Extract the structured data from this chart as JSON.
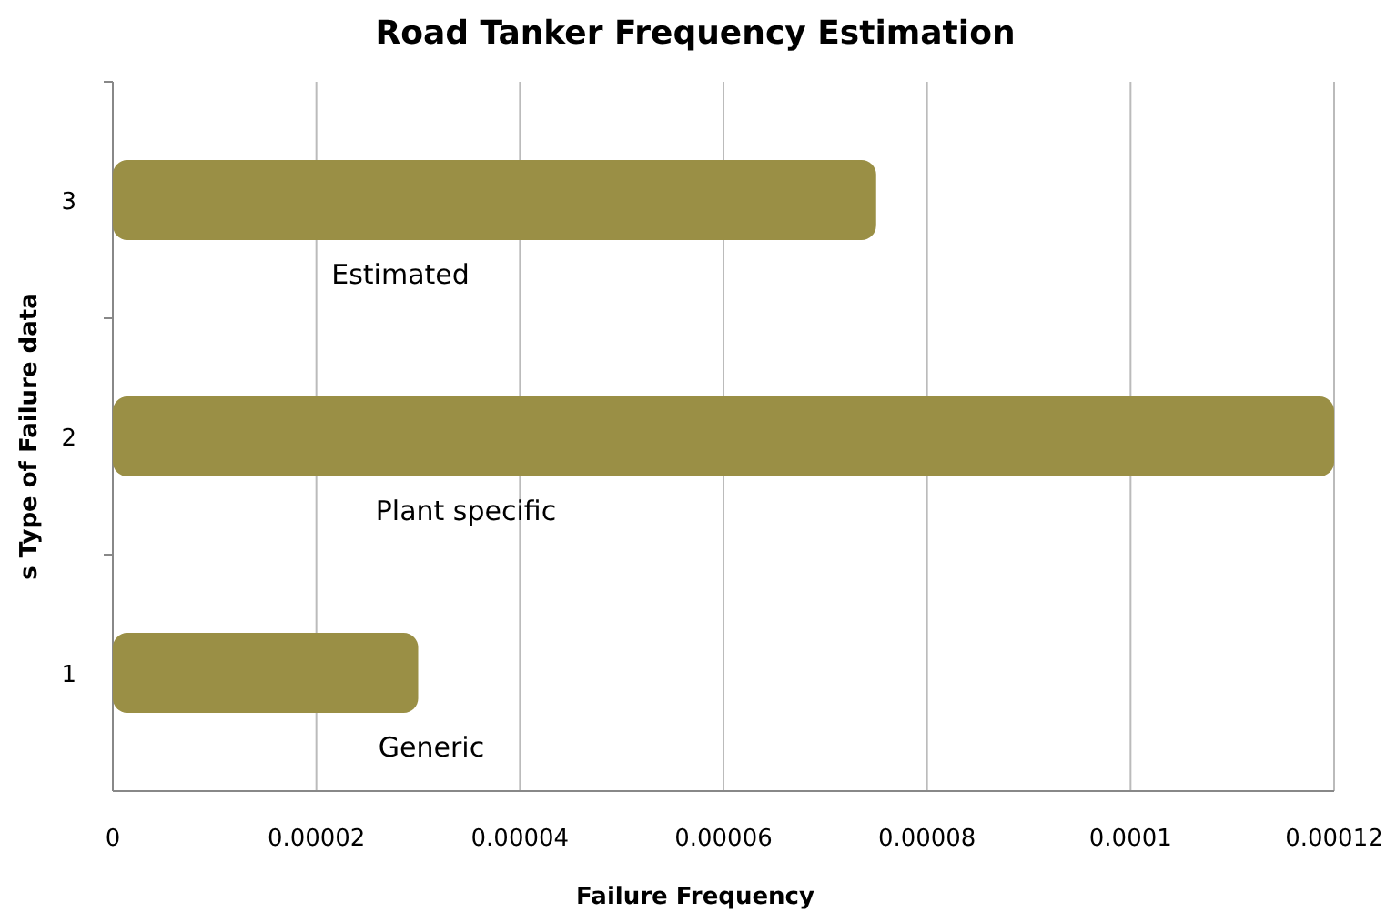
{
  "chart_data": {
    "type": "bar",
    "orientation": "horizontal",
    "title": "Road Tanker Frequency Estimation",
    "xlabel": "Failure Frequency",
    "ylabel": "s Type of Failure data",
    "categories": [
      "3",
      "2",
      "1"
    ],
    "values": [
      7.5e-05,
      0.00012,
      3e-05
    ],
    "color": "#9a8f45",
    "xlim": [
      0,
      0.00012
    ],
    "xticks": [
      0,
      {
        "value": 2e-05,
        "label": "0.00002"
      },
      {
        "value": 4e-05,
        "label": "0.00004"
      },
      {
        "value": 6e-05,
        "label": "0.00006"
      },
      {
        "value": 8e-05,
        "label": "0.00008"
      },
      0.0001,
      0.00012
    ],
    "grid": "x",
    "annotations": [
      "Estimated",
      "Plant specific",
      "Generic"
    ]
  }
}
